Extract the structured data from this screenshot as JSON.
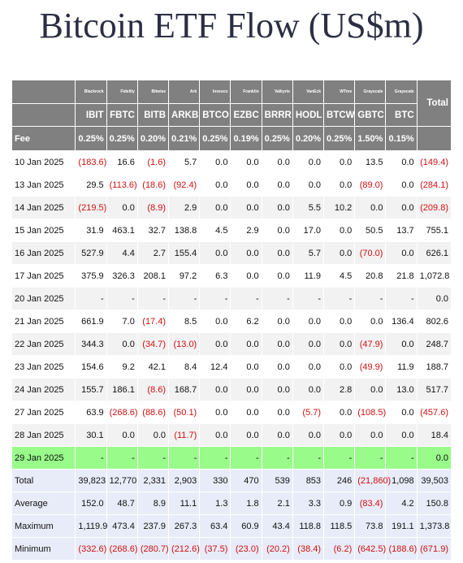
{
  "header": {
    "title": "Bitcoin ETF Flow (US$m)"
  },
  "table": {
    "issuers": [
      "Blackrock",
      "Fidelity",
      "Bitwise",
      "Ark",
      "Invesco",
      "Franklin",
      "Valkyrie",
      "VanEck",
      "WTree",
      "Grayscale",
      "Grayscale"
    ],
    "total_label": "Total",
    "tickers": [
      "IBIT",
      "FBTC",
      "BITB",
      "ARKB",
      "BTCO",
      "EZBC",
      "BRRR",
      "HODL",
      "BTCW",
      "GBTC",
      "BTC"
    ],
    "fee_label": "Fee",
    "fees": [
      "0.25%",
      "0.25%",
      "0.20%",
      "0.21%",
      "0.25%",
      "0.19%",
      "0.25%",
      "0.20%",
      "0.25%",
      "1.50%",
      "0.15%"
    ],
    "rows": [
      {
        "label": "10 Jan 2025",
        "fill": "#ffffff",
        "cells": [
          "(183.6)",
          "16.6",
          "(1.6)",
          "5.7",
          "0.0",
          "0.0",
          "0.0",
          "0.0",
          "0.0",
          "13.5",
          "0.0",
          "(149.4)"
        ]
      },
      {
        "label": "13 Jan 2025",
        "fill": "#ffffff",
        "cells": [
          "29.5",
          "(113.6)",
          "(18.6)",
          "(92.4)",
          "0.0",
          "0.0",
          "0.0",
          "0.0",
          "0.0",
          "(89.0)",
          "0.0",
          "(284.1)"
        ]
      },
      {
        "label": "14 Jan 2025",
        "fill": "#f2f2f2",
        "cells": [
          "(219.5)",
          "0.0",
          "(8.9)",
          "2.9",
          "0.0",
          "0.0",
          "0.0",
          "5.5",
          "10.2",
          "0.0",
          "0.0",
          "(209.8)"
        ]
      },
      {
        "label": "15 Jan 2025",
        "fill": "#ffffff",
        "cells": [
          "31.9",
          "463.1",
          "32.7",
          "138.8",
          "4.5",
          "2.9",
          "0.0",
          "17.0",
          "0.0",
          "50.5",
          "13.7",
          "755.1"
        ]
      },
      {
        "label": "16 Jan 2025",
        "fill": "#f2f2f2",
        "cells": [
          "527.9",
          "4.4",
          "2.7",
          "155.4",
          "0.0",
          "0.0",
          "0.0",
          "5.7",
          "0.0",
          "(70.0)",
          "0.0",
          "626.1"
        ]
      },
      {
        "label": "17 Jan 2025",
        "fill": "#ffffff",
        "cells": [
          "375.9",
          "326.3",
          "208.1",
          "97.2",
          "6.3",
          "0.0",
          "0.0",
          "11.9",
          "4.5",
          "20.8",
          "21.8",
          "1,072.8"
        ]
      },
      {
        "label": "20 Jan 2025",
        "fill": "#f2f2f2",
        "cells": [
          "-",
          "-",
          "-",
          "-",
          "-",
          "-",
          "-",
          "-",
          "-",
          "-",
          "-",
          "0.0"
        ]
      },
      {
        "label": "21 Jan 2025",
        "fill": "#ffffff",
        "cells": [
          "661.9",
          "7.0",
          "(17.4)",
          "8.5",
          "0.0",
          "6.2",
          "0.0",
          "0.0",
          "0.0",
          "0.0",
          "136.4",
          "802.6"
        ]
      },
      {
        "label": "22 Jan 2025",
        "fill": "#f2f2f2",
        "cells": [
          "344.3",
          "0.0",
          "(34.7)",
          "(13.0)",
          "0.0",
          "0.0",
          "0.0",
          "0.0",
          "0.0",
          "(47.9)",
          "0.0",
          "248.7"
        ]
      },
      {
        "label": "23 Jan 2025",
        "fill": "#ffffff",
        "cells": [
          "154.6",
          "9.2",
          "42.1",
          "8.4",
          "12.4",
          "0.0",
          "0.0",
          "0.0",
          "0.0",
          "(49.9)",
          "11.9",
          "188.7"
        ]
      },
      {
        "label": "24 Jan 2025",
        "fill": "#f2f2f2",
        "cells": [
          "155.7",
          "186.1",
          "(8.6)",
          "168.7",
          "0.0",
          "0.0",
          "0.0",
          "0.0",
          "2.8",
          "0.0",
          "13.0",
          "517.7"
        ]
      },
      {
        "label": "27 Jan 2025",
        "fill": "#ffffff",
        "cells": [
          "63.9",
          "(268.6)",
          "(88.6)",
          "(50.1)",
          "0.0",
          "0.0",
          "0.0",
          "(5.7)",
          "0.0",
          "(108.5)",
          "0.0",
          "(457.6)"
        ]
      },
      {
        "label": "28 Jan 2025",
        "fill": "#f2f2f2",
        "cells": [
          "30.1",
          "0.0",
          "0.0",
          "(11.7)",
          "0.0",
          "0.0",
          "0.0",
          "0.0",
          "0.0",
          "0.0",
          "0.0",
          "18.4"
        ]
      },
      {
        "label": "29 Jan 2025",
        "fill": "#98fb8a",
        "cells": [
          "-",
          "-",
          "-",
          "-",
          "-",
          "-",
          "-",
          "-",
          "-",
          "-",
          "-",
          "0.0"
        ]
      },
      {
        "label": "Total",
        "fill": "#e8ecf8",
        "cells": [
          "39,823",
          "12,770",
          "2,331",
          "2,903",
          "330",
          "470",
          "539",
          "853",
          "246",
          "(21,860)",
          "1,098",
          "39,503"
        ]
      },
      {
        "label": "Average",
        "fill": "#e8ecf8",
        "cells": [
          "152.0",
          "48.7",
          "8.9",
          "11.1",
          "1.3",
          "1.8",
          "2.1",
          "3.3",
          "0.9",
          "(83.4)",
          "4.2",
          "150.8"
        ]
      },
      {
        "label": "Maximum",
        "fill": "#e8ecf8",
        "cells": [
          "1,119.9",
          "473.4",
          "237.9",
          "267.3",
          "63.4",
          "60.9",
          "43.4",
          "118.8",
          "118.5",
          "73.8",
          "191.1",
          "1,373.8"
        ]
      },
      {
        "label": "Minimum",
        "fill": "#e8ecf8",
        "cells": [
          "(332.6)",
          "(268.6)",
          "(280.7)",
          "(212.6)",
          "(37.5)",
          "(23.0)",
          "(20.2)",
          "(38.4)",
          "(6.2)",
          "(642.5)",
          "(188.6)",
          "(671.9)"
        ]
      }
    ]
  }
}
